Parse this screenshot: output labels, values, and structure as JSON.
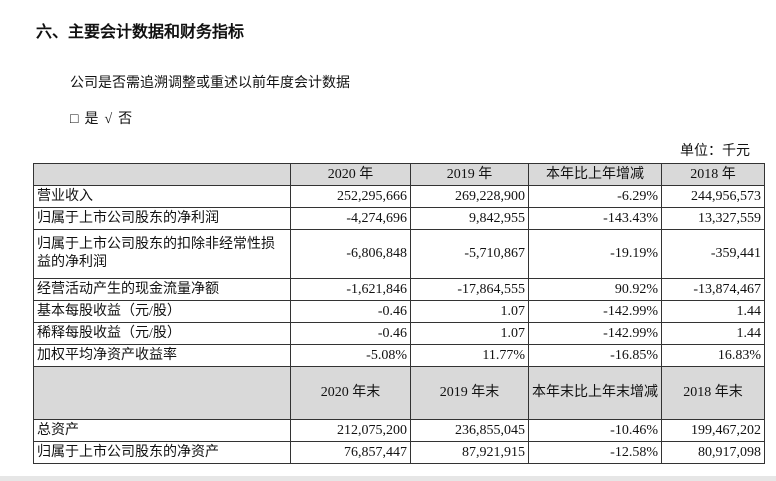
{
  "title": "六、主要会计数据和财务指标",
  "question": "公司是否需追溯调整或重述以前年度会计数据",
  "options": {
    "box": "□",
    "yes": "是",
    "check": "√",
    "no": "否"
  },
  "unit": "单位：千元",
  "header1": [
    "",
    "2020 年",
    "2019 年",
    "本年比上年增减",
    "2018 年"
  ],
  "rows1": [
    [
      "营业收入",
      "252,295,666",
      "269,228,900",
      "-6.29%",
      "244,956,573"
    ],
    [
      "归属于上市公司股东的净利润",
      "-4,274,696",
      "9,842,955",
      "-143.43%",
      "13,327,559"
    ],
    [
      "归属于上市公司股东的扣除非经常性损益的净利润",
      "-6,806,848",
      "-5,710,867",
      "-19.19%",
      "-359,441"
    ],
    [
      "经营活动产生的现金流量净额",
      "-1,621,846",
      "-17,864,555",
      "90.92%",
      "-13,874,467"
    ],
    [
      "基本每股收益（元/股）",
      "-0.46",
      "1.07",
      "-142.99%",
      "1.44"
    ],
    [
      "稀释每股收益（元/股）",
      "-0.46",
      "1.07",
      "-142.99%",
      "1.44"
    ],
    [
      "加权平均净资产收益率",
      "-5.08%",
      "11.77%",
      "-16.85%",
      "16.83%"
    ]
  ],
  "header2": [
    "",
    "2020 年末",
    "2019 年末",
    "本年末比上年末增减",
    "2018 年末"
  ],
  "rows2": [
    [
      "总资产",
      "212,075,200",
      "236,855,045",
      "-10.46%",
      "199,467,202"
    ],
    [
      "归属于上市公司股东的净资产",
      "76,857,447",
      "87,921,915",
      "-12.58%",
      "80,917,098"
    ]
  ]
}
